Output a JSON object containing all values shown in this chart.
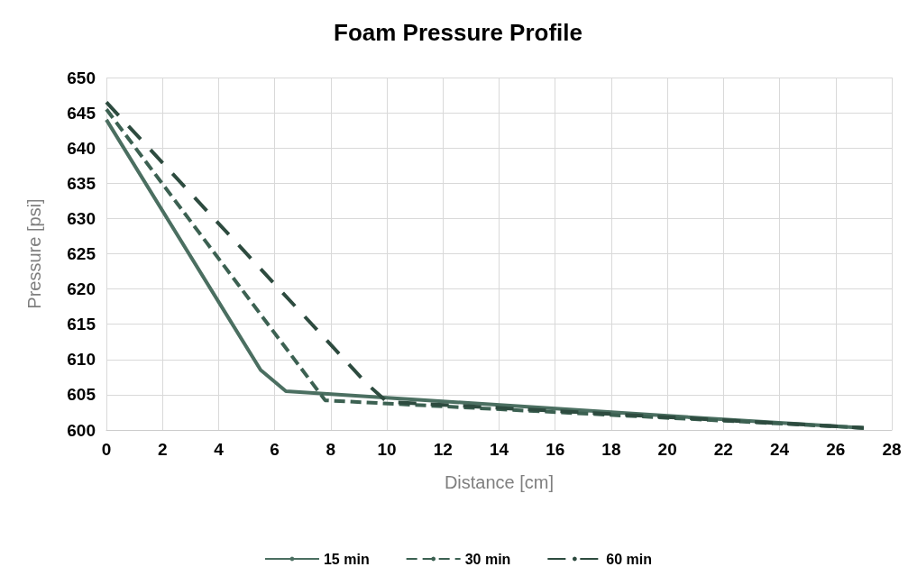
{
  "chart_data": {
    "type": "line",
    "title": "Foam Pressure Profile",
    "xlabel": "Distance [cm]",
    "ylabel": "Pressure [psi]",
    "xlim": [
      0,
      28
    ],
    "xticks": [
      0,
      2,
      4,
      6,
      8,
      10,
      12,
      14,
      16,
      18,
      20,
      22,
      24,
      26,
      28
    ],
    "ylim": [
      600,
      650
    ],
    "yticks": [
      600,
      605,
      610,
      615,
      620,
      625,
      630,
      635,
      640,
      645,
      650
    ],
    "grid": true,
    "legend": "bottom",
    "marker": "none",
    "series": [
      {
        "name": "15 min",
        "color": "#4b6f61",
        "line_style": "solid",
        "x": [
          0,
          5.5,
          6.4,
          20,
          27
        ],
        "values": [
          644,
          608.5,
          605.5,
          602,
          600.3
        ]
      },
      {
        "name": "30 min",
        "color": "#3c6152",
        "line_style": "dashed",
        "x": [
          0,
          7.8,
          27
        ],
        "values": [
          645.5,
          604.2,
          600.3
        ]
      },
      {
        "name": "60 min",
        "color": "#2d4b3f",
        "line_style": "longdash",
        "x": [
          0,
          9.3,
          10,
          27
        ],
        "values": [
          646.5,
          606.5,
          604,
          600.3
        ]
      }
    ]
  }
}
